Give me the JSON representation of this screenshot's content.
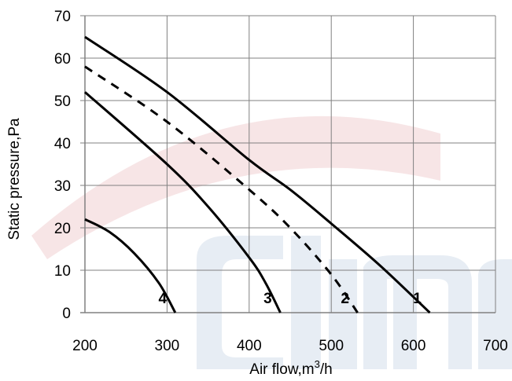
{
  "chart_data": {
    "type": "line",
    "title": "",
    "xlabel": "Air flow,m",
    "xlabel_sup": "3",
    "xlabel_suffix": "/h",
    "ylabel": "Static pressure,Pa",
    "xlim": [
      200,
      700
    ],
    "ylim": [
      0,
      70
    ],
    "x_ticks": [
      "200",
      "300",
      "400",
      "500",
      "600",
      "700"
    ],
    "y_ticks": [
      "0",
      "10",
      "20",
      "30",
      "40",
      "50",
      "60",
      "70"
    ],
    "grid": true,
    "legend": "none",
    "series": [
      {
        "name": "1",
        "style": "solid",
        "color": "#000000",
        "points": [
          [
            200,
            65
          ],
          [
            300,
            52
          ],
          [
            400,
            36
          ],
          [
            450,
            29
          ],
          [
            500,
            21
          ],
          [
            560,
            11
          ],
          [
            620,
            0
          ]
        ]
      },
      {
        "name": "2",
        "style": "dashed",
        "color": "#000000",
        "points": [
          [
            200,
            58
          ],
          [
            300,
            45
          ],
          [
            400,
            29
          ],
          [
            450,
            20
          ],
          [
            500,
            9
          ],
          [
            532,
            0
          ]
        ]
      },
      {
        "name": "3",
        "style": "solid",
        "color": "#000000",
        "points": [
          [
            200,
            52
          ],
          [
            300,
            35
          ],
          [
            350,
            25
          ],
          [
            400,
            13
          ],
          [
            420,
            7
          ],
          [
            438,
            0
          ]
        ]
      },
      {
        "name": "4",
        "style": "solid",
        "color": "#000000",
        "points": [
          [
            200,
            22
          ],
          [
            230,
            19
          ],
          [
            260,
            14
          ],
          [
            290,
            7
          ],
          [
            310,
            0
          ]
        ]
      }
    ],
    "watermark_colors": [
      "#e7b5b8",
      "#c9d6e6"
    ]
  }
}
